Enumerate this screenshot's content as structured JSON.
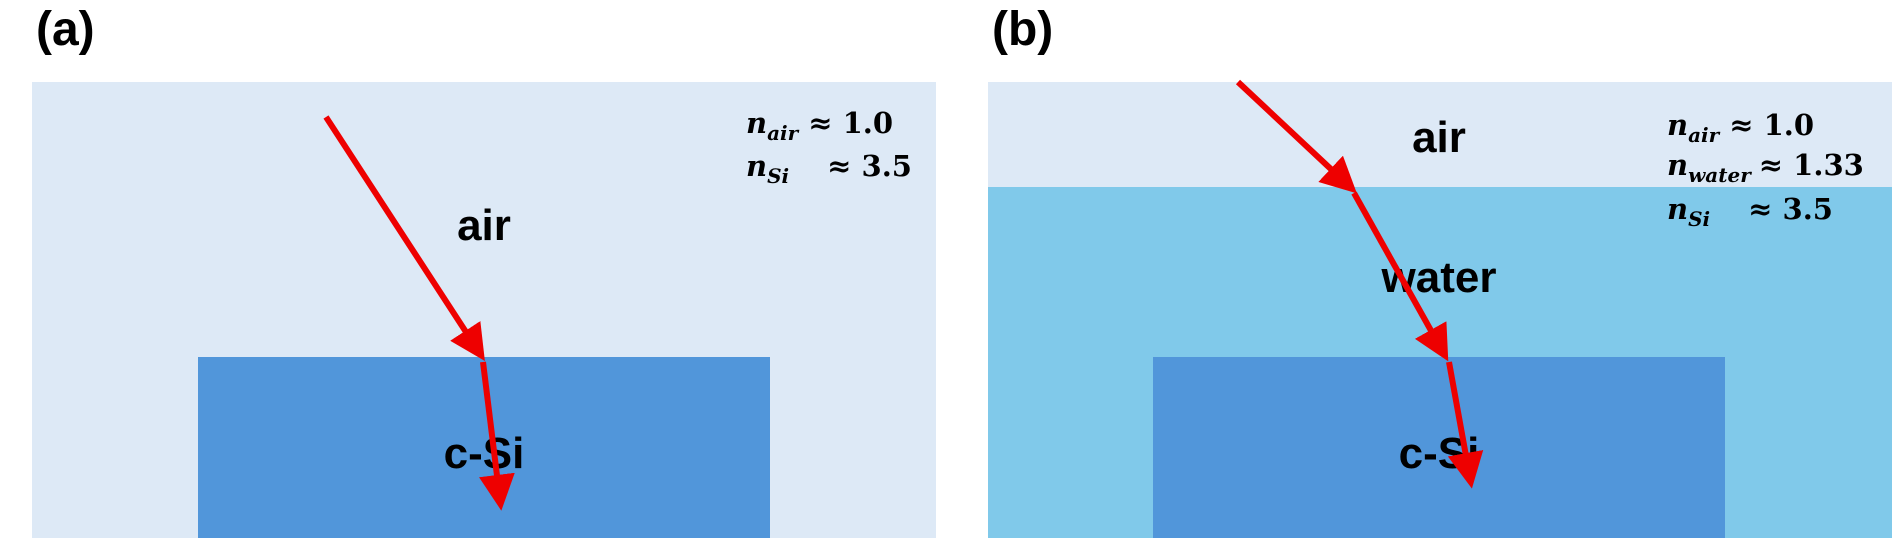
{
  "panels": [
    {
      "label": "(a)",
      "media": {
        "air": "air",
        "substrate": "c-Si"
      },
      "indices": [
        {
          "symbol": "n",
          "subscript": "air",
          "value": "≈ 1.0"
        },
        {
          "symbol": "n",
          "subscript": "Si",
          "value": "≈ 3.5"
        }
      ]
    },
    {
      "label": "(b)",
      "media": {
        "air": "air",
        "water": "water",
        "substrate": "c-Si"
      },
      "indices": [
        {
          "symbol": "n",
          "subscript": "air",
          "value": "≈ 1.0"
        },
        {
          "symbol": "n",
          "subscript": "water",
          "value": "≈ 1.33"
        },
        {
          "symbol": "n",
          "subscript": "Si",
          "value": "≈ 3.5"
        }
      ]
    }
  ],
  "colors": {
    "air": "#dde9f6",
    "water": "#80c9ea",
    "silicon": "#5196da",
    "ray": "#ee0000"
  }
}
